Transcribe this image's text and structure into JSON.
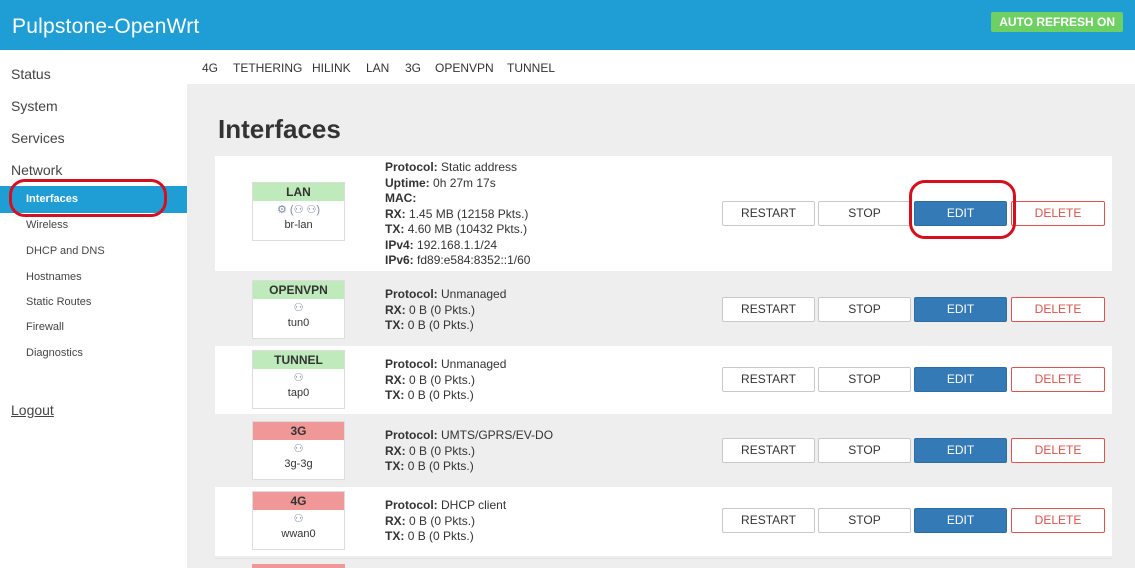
{
  "header": {
    "brand": "Pulpstone-OpenWrt",
    "auto_refresh": "AUTO REFRESH ON",
    "bar_color": "#1f9ed6"
  },
  "sidebar": {
    "status": "Status",
    "system": "System",
    "services": "Services",
    "network": "Network",
    "network_items": [
      "Interfaces",
      "Wireless",
      "DHCP and DNS",
      "Hostnames",
      "Static Routes",
      "Firewall",
      "Diagnostics"
    ],
    "active_item": "Interfaces",
    "logout": "Logout"
  },
  "tabs": [
    "4G",
    "TETHERING",
    "HILINK",
    "LAN",
    "3G",
    "OPENVPN",
    "TUNNEL"
  ],
  "main": {
    "title": "Interfaces",
    "labels": {
      "protocol": "Protocol:",
      "uptime": "Uptime:",
      "mac": "MAC:",
      "rx": "RX:",
      "tx": "TX:",
      "ipv4": "IPv4:",
      "ipv6": "IPv6:"
    },
    "buttons": {
      "restart": "RESTART",
      "stop": "STOP",
      "edit": "EDIT",
      "delete": "DELETE"
    },
    "interfaces": [
      {
        "name": "LAN",
        "status_color": "green",
        "icon": "network-bridge-icon",
        "icon_glyph": "⚙ (⚇ ⚇)",
        "device": "br-lan",
        "protocol": "Static address",
        "uptime": "0h 27m 17s",
        "mac": "",
        "rx": "1.45 MB (12158 Pkts.)",
        "tx": "4.60 MB (10432 Pkts.)",
        "ipv4": "192.168.1.1/24",
        "ipv6": "fd89:e584:8352::1/60"
      },
      {
        "name": "OPENVPN",
        "status_color": "green",
        "icon": "tunnel-device-icon",
        "icon_glyph": "⚇",
        "device": "tun0",
        "protocol": "Unmanaged",
        "rx": "0 B (0 Pkts.)",
        "tx": "0 B (0 Pkts.)"
      },
      {
        "name": "TUNNEL",
        "status_color": "green",
        "icon": "tap-device-icon",
        "icon_glyph": "⚇",
        "device": "tap0",
        "protocol": "Unmanaged",
        "rx": "0 B (0 Pkts.)",
        "tx": "0 B (0 Pkts.)"
      },
      {
        "name": "3G",
        "status_color": "red",
        "icon": "modem-device-icon",
        "icon_glyph": "⚇",
        "device": "3g-3g",
        "protocol": "UMTS/GPRS/EV-DO",
        "rx": "0 B (0 Pkts.)",
        "tx": "0 B (0 Pkts.)"
      },
      {
        "name": "4G",
        "status_color": "red",
        "icon": "wwan-device-icon",
        "icon_glyph": "⚇",
        "device": "wwan0",
        "protocol": "DHCP client",
        "rx": "0 B (0 Pkts.)",
        "tx": "0 B (0 Pkts.)"
      }
    ]
  },
  "colors": {
    "accent": "#1f9ed6",
    "edit_button": "#337ab7",
    "delete_text": "#d9534f",
    "status_up": "#bfeabb",
    "status_down": "#f09797",
    "annotation": "#d5101e"
  }
}
